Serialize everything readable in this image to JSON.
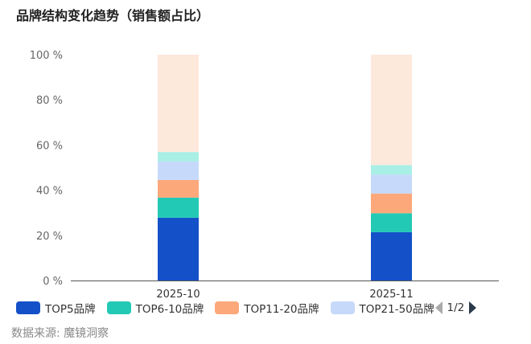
{
  "title": "品牌结构变化趋势（销售额占比）",
  "source": "数据来源: 魔镜洞察",
  "legend_pager": "1/2",
  "chart_data": {
    "type": "bar",
    "stacked": true,
    "categories": [
      "2025-10",
      "2025-11"
    ],
    "ylim": [
      0,
      100
    ],
    "yticks": [
      "0 %",
      "20 %",
      "40 %",
      "60 %",
      "80 %",
      "100 %"
    ],
    "grid": false,
    "legend_placement": "bottom",
    "series": [
      {
        "name": "TOP5品牌",
        "color": "#1450c8",
        "values": [
          27.8,
          21.4
        ]
      },
      {
        "name": "TOP6-10品牌",
        "color": "#22c9b4",
        "values": [
          8.9,
          8.4
        ]
      },
      {
        "name": "TOP11-20品牌",
        "color": "#fca87a",
        "values": [
          7.8,
          8.7
        ]
      },
      {
        "name": "TOP21-50品牌",
        "color": "#c6d9fa",
        "values": [
          8.2,
          8.4
        ]
      },
      {
        "color": "#a9efe5",
        "values": [
          4.2,
          4.2
        ]
      },
      {
        "color": "#fde8dc",
        "values": [
          43.1,
          48.9
        ]
      }
    ]
  }
}
